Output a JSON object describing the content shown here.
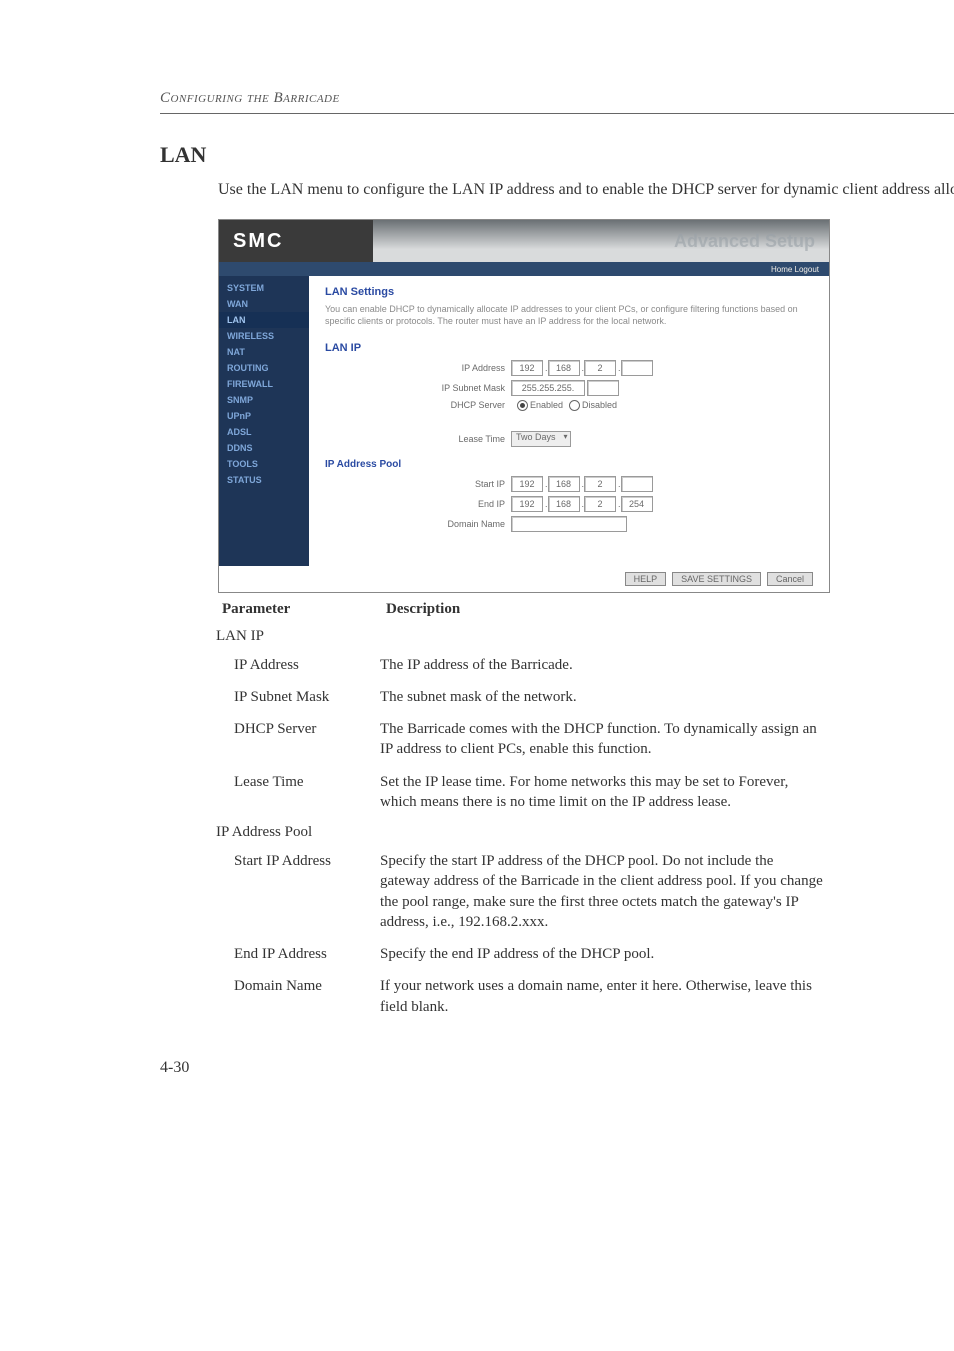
{
  "running_head": "Configuring the Barricade",
  "section_title": "LAN",
  "intro": "Use the LAN menu to configure the LAN IP address and to enable the DHCP server for dynamic client address allocation.",
  "page_number": "4-30",
  "screenshot": {
    "logo": "SMC",
    "banner": "Advanced Setup",
    "toplinks": "Home  Logout",
    "sidebar": [
      "SYSTEM",
      "WAN",
      "LAN",
      "WIRELESS",
      "NAT",
      "ROUTING",
      "FIREWALL",
      "SNMP",
      "UPnP",
      "ADSL",
      "DDNS",
      "TOOLS",
      "STATUS"
    ],
    "h1": "LAN Settings",
    "desc": "You can enable DHCP to dynamically allocate IP addresses to your client PCs, or configure filtering functions based on specific clients or protocols. The router must have an IP address for the local network.",
    "h2": "LAN IP",
    "ip_label": "IP Address",
    "ip_vals": [
      "192",
      "168",
      "2",
      ""
    ],
    "mask_label": "IP Subnet Mask",
    "mask_val": "255.255.255.",
    "dhcp_label": "DHCP Server",
    "dhcp_enabled": "Enabled",
    "dhcp_disabled": "Disabled",
    "lease_label": "Lease Time",
    "lease_val": "Two Days",
    "h3": "IP Address Pool",
    "start_label": "Start IP",
    "start_vals": [
      "192",
      "168",
      "2",
      ""
    ],
    "end_label": "End IP",
    "end_vals": [
      "192",
      "168",
      "2",
      "254"
    ],
    "domain_label": "Domain Name",
    "btn_help": "HELP",
    "btn_save": "SAVE SETTINGS",
    "btn_cancel": "Cancel"
  },
  "table": {
    "head_param": "Parameter",
    "head_desc": "Description",
    "rows": [
      {
        "sub": true,
        "p": "LAN IP",
        "d": ""
      },
      {
        "p": "IP Address",
        "d": "The IP address of the Barricade."
      },
      {
        "p": "IP Subnet Mask",
        "d": "The subnet mask of the network."
      },
      {
        "p": "DHCP Server",
        "d": "The Barricade comes with the DHCP function. To dynamically assign an IP address to client PCs, enable this function."
      },
      {
        "p": "Lease Time",
        "d": "Set the IP lease time. For home networks this may be set to Forever, which means there is no time limit on the IP address lease."
      },
      {
        "sub": true,
        "p": "IP Address Pool",
        "d": ""
      },
      {
        "p": "Start IP Address",
        "d": "Specify the start IP address of the DHCP pool. Do not include the gateway address of the Barricade in the client address pool. If you change the pool range, make sure the first three octets match the gateway's IP address, i.e., 192.168.2.xxx."
      },
      {
        "p": "End IP Address",
        "d": "Specify the end IP address of the DHCP pool."
      },
      {
        "p": "Domain Name",
        "d": "If your network uses a domain name, enter it here. Otherwise, leave this field blank."
      }
    ]
  }
}
